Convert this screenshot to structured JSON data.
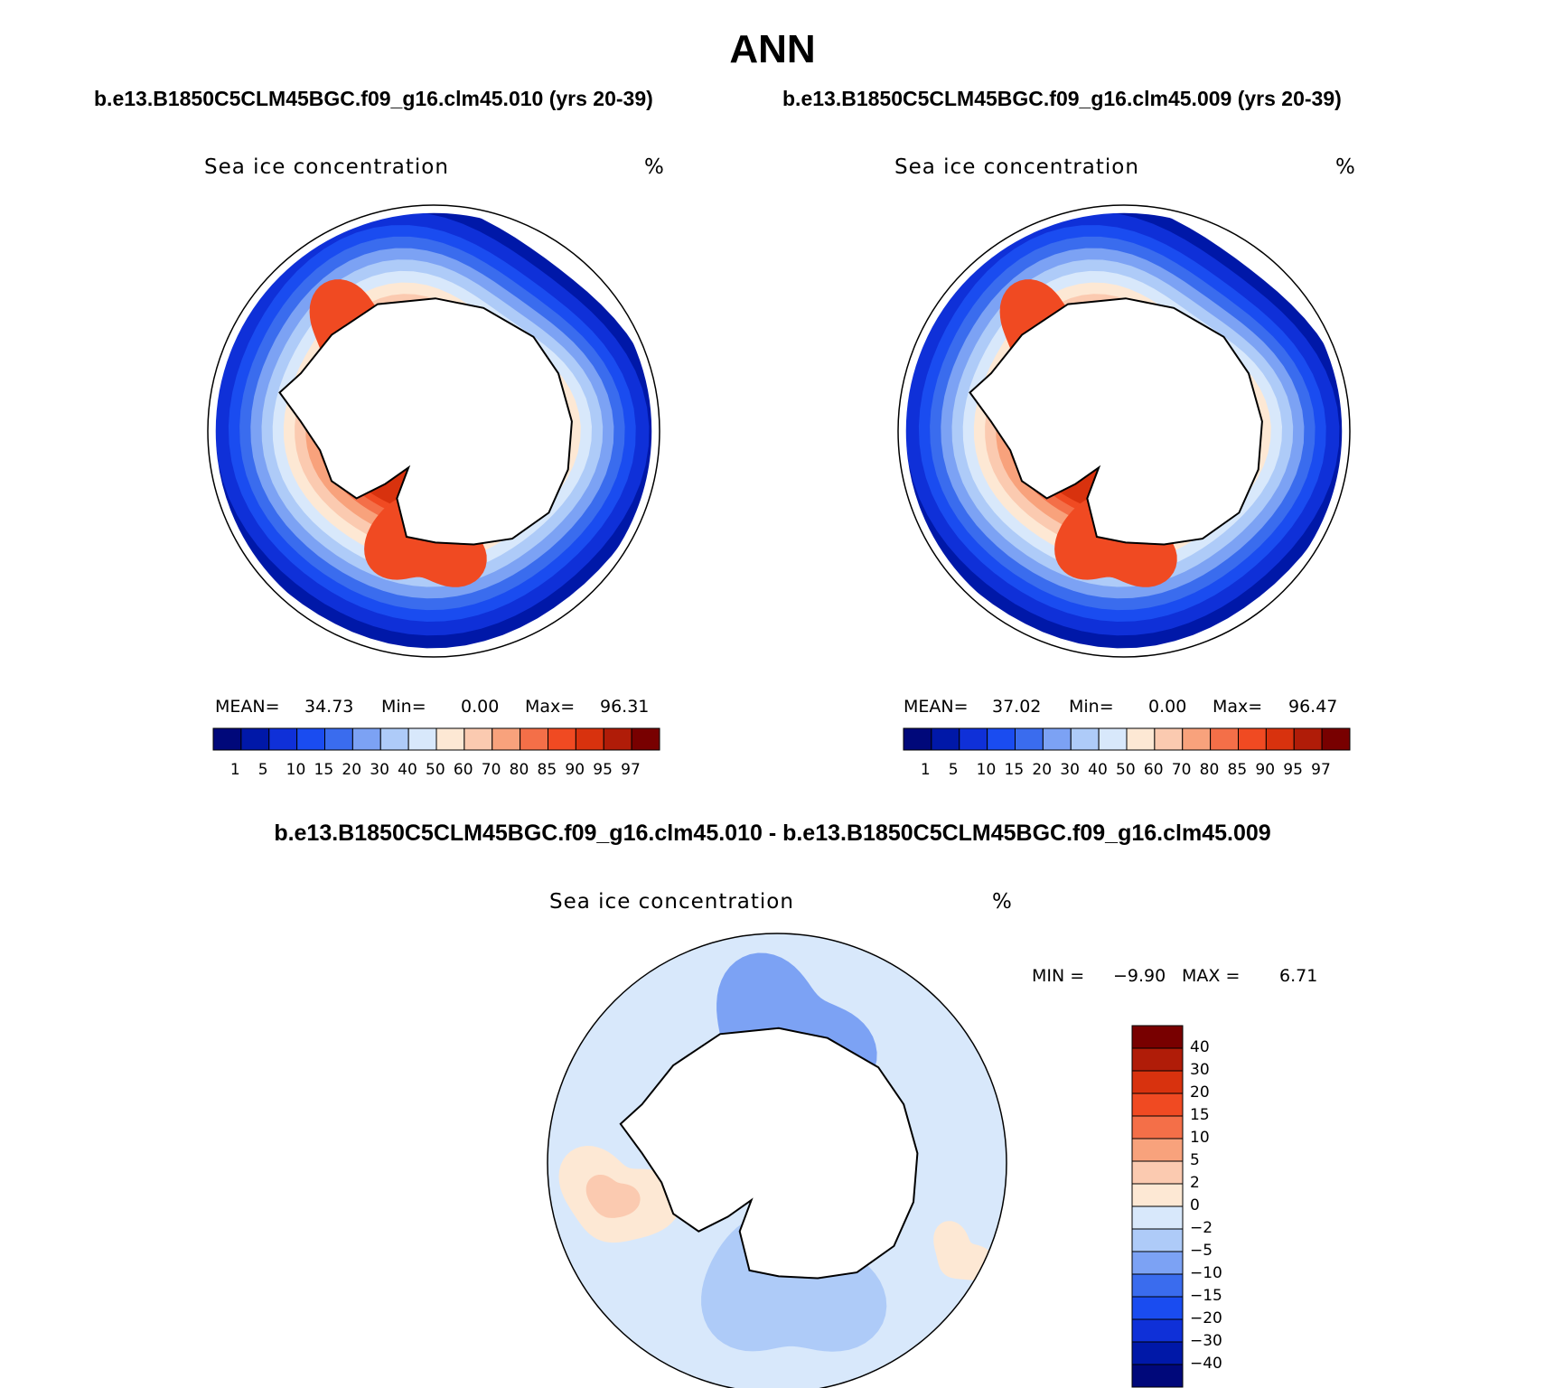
{
  "page_title": "ANN",
  "panel_left": {
    "case_title": "b.e13.B1850C5CLM45BGC.f09_g16.clm45.010 (yrs 20-39)",
    "var_label": "Sea ice concentration",
    "units": "%",
    "mean_label": "MEAN=",
    "mean_value": "34.73",
    "min_label": "Min=",
    "min_value": "0.00",
    "max_label": "Max=",
    "max_value": "96.31"
  },
  "panel_right": {
    "case_title": "b.e13.B1850C5CLM45BGC.f09_g16.clm45.009 (yrs 20-39)",
    "var_label": "Sea ice concentration",
    "units": "%",
    "mean_label": "MEAN=",
    "mean_value": "37.02",
    "min_label": "Min=",
    "min_value": "0.00",
    "max_label": "Max=",
    "max_value": "96.47"
  },
  "panel_diff": {
    "title": "b.e13.B1850C5CLM45BGC.f09_g16.clm45.010 - b.e13.B1850C5CLM45BGC.f09_g16.clm45.009",
    "var_label": "Sea ice concentration",
    "units": "%",
    "min_label": "MIN =",
    "min_value": "−9.90",
    "max_label": "MAX =",
    "max_value": "6.71"
  },
  "chart_data": [
    {
      "type": "heatmap",
      "projection": "south polar stereographic",
      "title": "b.e13.B1850C5CLM45BGC.f09_g16.clm45.010 (yrs 20-39)",
      "variable": "Sea ice concentration",
      "units": "%",
      "mean": 34.73,
      "min": 0.0,
      "max": 96.31,
      "colorbar_levels": [
        "1",
        "5",
        "10",
        "15",
        "20",
        "30",
        "40",
        "50",
        "60",
        "70",
        "80",
        "85",
        "90",
        "95",
        "97"
      ],
      "colorbar_colors": [
        "#00087a",
        "#0018a8",
        "#0f30d8",
        "#1a4cf0",
        "#3a6cee",
        "#7ca2f4",
        "#aecbf8",
        "#d8e8fb",
        "#fde8d4",
        "#fbcab0",
        "#f8a27c",
        "#f46f48",
        "#f04a22",
        "#d8320e",
        "#b01c08",
        "#780000"
      ]
    },
    {
      "type": "heatmap",
      "projection": "south polar stereographic",
      "title": "b.e13.B1850C5CLM45BGC.f09_g16.clm45.009 (yrs 20-39)",
      "variable": "Sea ice concentration",
      "units": "%",
      "mean": 37.02,
      "min": 0.0,
      "max": 96.47,
      "colorbar_levels": [
        "1",
        "5",
        "10",
        "15",
        "20",
        "30",
        "40",
        "50",
        "60",
        "70",
        "80",
        "85",
        "90",
        "95",
        "97"
      ],
      "colorbar_colors": [
        "#00087a",
        "#0018a8",
        "#0f30d8",
        "#1a4cf0",
        "#3a6cee",
        "#7ca2f4",
        "#aecbf8",
        "#d8e8fb",
        "#fde8d4",
        "#fbcab0",
        "#f8a27c",
        "#f46f48",
        "#f04a22",
        "#d8320e",
        "#b01c08",
        "#780000"
      ]
    },
    {
      "type": "heatmap",
      "projection": "south polar stereographic",
      "title": "b.e13.B1850C5CLM45BGC.f09_g16.clm45.010 - b.e13.B1850C5CLM45BGC.f09_g16.clm45.009",
      "variable": "Sea ice concentration",
      "units": "%",
      "min": -9.9,
      "max": 6.71,
      "colorbar_levels": [
        "40",
        "30",
        "20",
        "15",
        "10",
        "5",
        "2",
        "0",
        "−2",
        "−5",
        "−10",
        "−15",
        "−20",
        "−30",
        "−40"
      ],
      "colorbar_colors": [
        "#780000",
        "#b01c08",
        "#d8320e",
        "#f04a22",
        "#f46f48",
        "#f8a27c",
        "#fbcab0",
        "#fde8d4",
        "#d8e8fb",
        "#aecbf8",
        "#7ca2f4",
        "#3a6cee",
        "#1a4cf0",
        "#0f30d8",
        "#0018a8",
        "#00087a"
      ]
    }
  ]
}
